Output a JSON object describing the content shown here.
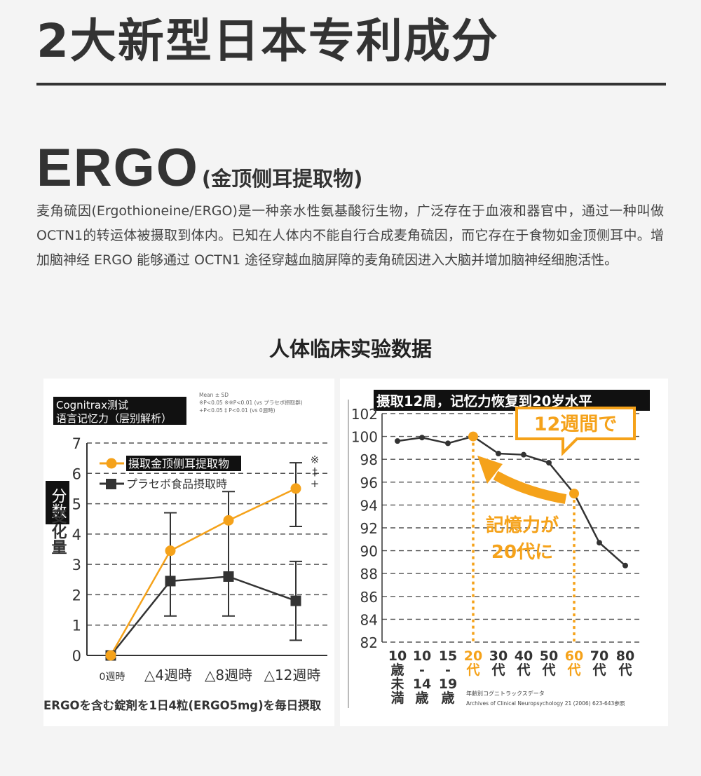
{
  "header": {
    "title": "2大新型日本专利成分",
    "ergo_title": "ERGO",
    "ergo_subtitle": "(金顶侧耳提取物)",
    "description": "麦角硫因(Ergothioneine/ERGO)是一种亲水性氨基酸衍生物，广泛存在于血液和器官中，通过一种叫做 OCTN1的转运体被摄取到体内。已知在人体内不能自行合成麦角硫因，而它存在于食物如金顶侧耳中。增加脑神经 ERGO 能够通过 OCTN1 途径穿越血脑屏障的麦角硫因进入大脑并增加脑神经细胞活性。",
    "section_title": "人体临床实验数据"
  },
  "colors": {
    "orange": "#f5a21a",
    "dark": "#333333",
    "grid": "#555555"
  },
  "chart_data": [
    {
      "type": "line",
      "title": "Cognitrax测试 语言记忆力（层别解析）",
      "title_lines": [
        "Cognitrax测试",
        "语言记忆力（层别解析）"
      ],
      "stats_note": [
        "Mean ± SD",
        "※P<0.05  ※※P<0.01 (vs プラセボ摂取群)",
        "+P<0.05   ‡ P<0.01 (vs 0週時)"
      ],
      "ylabel_top": "分数",
      "ylabel_bottom": "变化量",
      "ylim": [
        0,
        7
      ],
      "yticks": [
        0,
        1,
        2,
        3,
        4,
        5,
        6,
        7
      ],
      "categories": [
        "0週時",
        "△4週時",
        "△8週時",
        "△12週時"
      ],
      "series": [
        {
          "name": "摄取金顶侧耳提取物",
          "color": "#f5a21a",
          "values": [
            0,
            3.45,
            4.45,
            5.5
          ]
        },
        {
          "name": "プラセボ食品摂取時",
          "color": "#333333",
          "values": [
            0,
            2.45,
            2.6,
            1.8
          ]
        }
      ],
      "error_bars": [
        {
          "x_index": 1,
          "low": 1.3,
          "high": 4.7
        },
        {
          "x_index": 2,
          "low": 1.3,
          "high": 5.4
        },
        {
          "x_index": 3,
          "low": 4.25,
          "high": 6.35
        },
        {
          "x_index": 3,
          "low": 0.5,
          "high": 3.1
        }
      ],
      "significance_marks": [
        "※",
        "‡",
        "+"
      ],
      "footnote": "ERGOを含む錠剤を1日4粒(ERGO5mg)を毎日摂取"
    },
    {
      "type": "line",
      "title": "摄取12周，记忆力恢复到20岁水平",
      "ylim": [
        82,
        102
      ],
      "yticks": [
        82,
        84,
        86,
        88,
        90,
        92,
        94,
        96,
        98,
        100,
        102
      ],
      "categories": [
        {
          "lines": [
            "10",
            "歳",
            "未",
            "満"
          ],
          "highlight": false
        },
        {
          "lines": [
            "10",
            "-",
            "14",
            "歳"
          ],
          "highlight": false
        },
        {
          "lines": [
            "15",
            "-",
            "19",
            "歳"
          ],
          "highlight": false
        },
        {
          "lines": [
            "20",
            "代"
          ],
          "highlight": true
        },
        {
          "lines": [
            "30",
            "代"
          ],
          "highlight": false
        },
        {
          "lines": [
            "40",
            "代"
          ],
          "highlight": false
        },
        {
          "lines": [
            "50",
            "代"
          ],
          "highlight": false
        },
        {
          "lines": [
            "60",
            "代"
          ],
          "highlight": true
        },
        {
          "lines": [
            "70",
            "代"
          ],
          "highlight": false
        },
        {
          "lines": [
            "80",
            "代"
          ],
          "highlight": false
        }
      ],
      "series": [
        {
          "color": "#333333",
          "values": [
            99.6,
            99.9,
            99.4,
            100.0,
            98.5,
            98.4,
            97.7,
            95.0,
            90.7,
            88.7
          ]
        }
      ],
      "highlight_index": [
        3,
        7
      ],
      "annotations": {
        "callout": "12週間で",
        "arrow_text_1": "記憶力が",
        "arrow_text_2": "20代に"
      },
      "source_1": "年齢別コグニトラックスデータ",
      "source_2": "Archives of Clinical Neuropsychology 21 (2006) 623-643参照"
    }
  ]
}
